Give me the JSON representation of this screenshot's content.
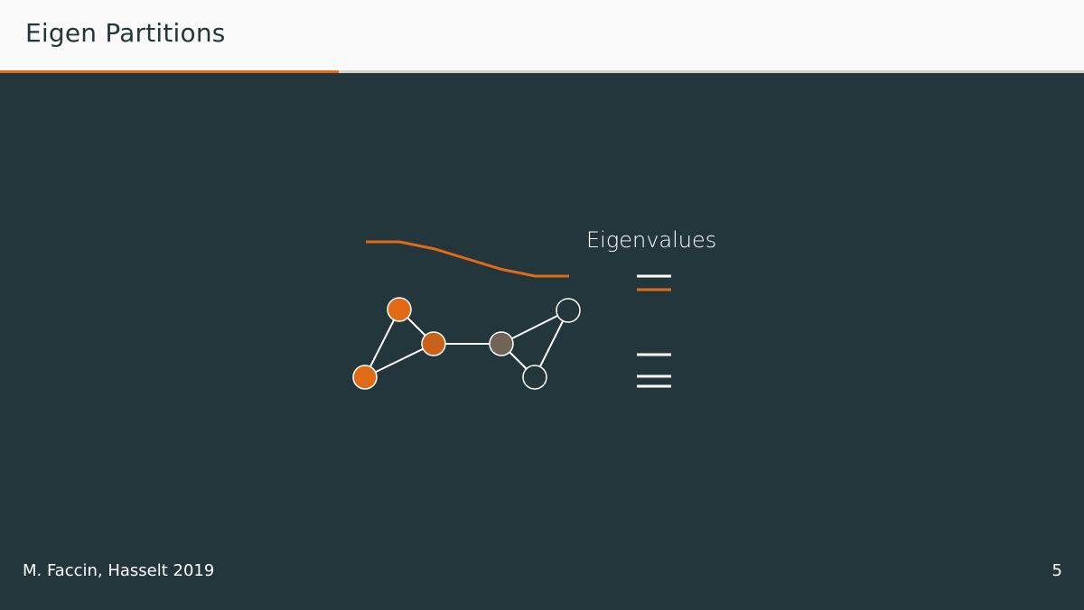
{
  "slide": {
    "title": "Eigen Partitions",
    "progress_fraction": 0.3125
  },
  "diagram": {
    "eigenvalues_heading": "Eigenvalues",
    "colors": {
      "accent": "#e06a16",
      "accent_dark": "#c8621a",
      "neutral": "#6f6456",
      "white": "#ffffff",
      "background": "#23363c"
    },
    "eigenvector_curve_values": [
      1.0,
      1.0,
      0.9,
      0.75,
      0.6,
      0.5,
      0.5
    ],
    "nodes": [
      {
        "id": "a",
        "color": "accent"
      },
      {
        "id": "b",
        "color": "accent"
      },
      {
        "id": "c",
        "color": "accent_dark"
      },
      {
        "id": "d",
        "color": "neutral"
      },
      {
        "id": "e",
        "color": "background"
      },
      {
        "id": "f",
        "color": "background"
      }
    ],
    "edges": [
      [
        "a",
        "b"
      ],
      [
        "a",
        "c"
      ],
      [
        "b",
        "c"
      ],
      [
        "c",
        "d"
      ],
      [
        "d",
        "e"
      ],
      [
        "d",
        "f"
      ],
      [
        "e",
        "f"
      ]
    ],
    "eigenvalue_marks": [
      {
        "color": "white"
      },
      {
        "color": "accent"
      },
      {
        "color": "white"
      },
      {
        "color": "white"
      },
      {
        "color": "white"
      }
    ]
  },
  "footer": {
    "author": "M. Faccin, Hasselt 2019",
    "page_number": "5"
  }
}
